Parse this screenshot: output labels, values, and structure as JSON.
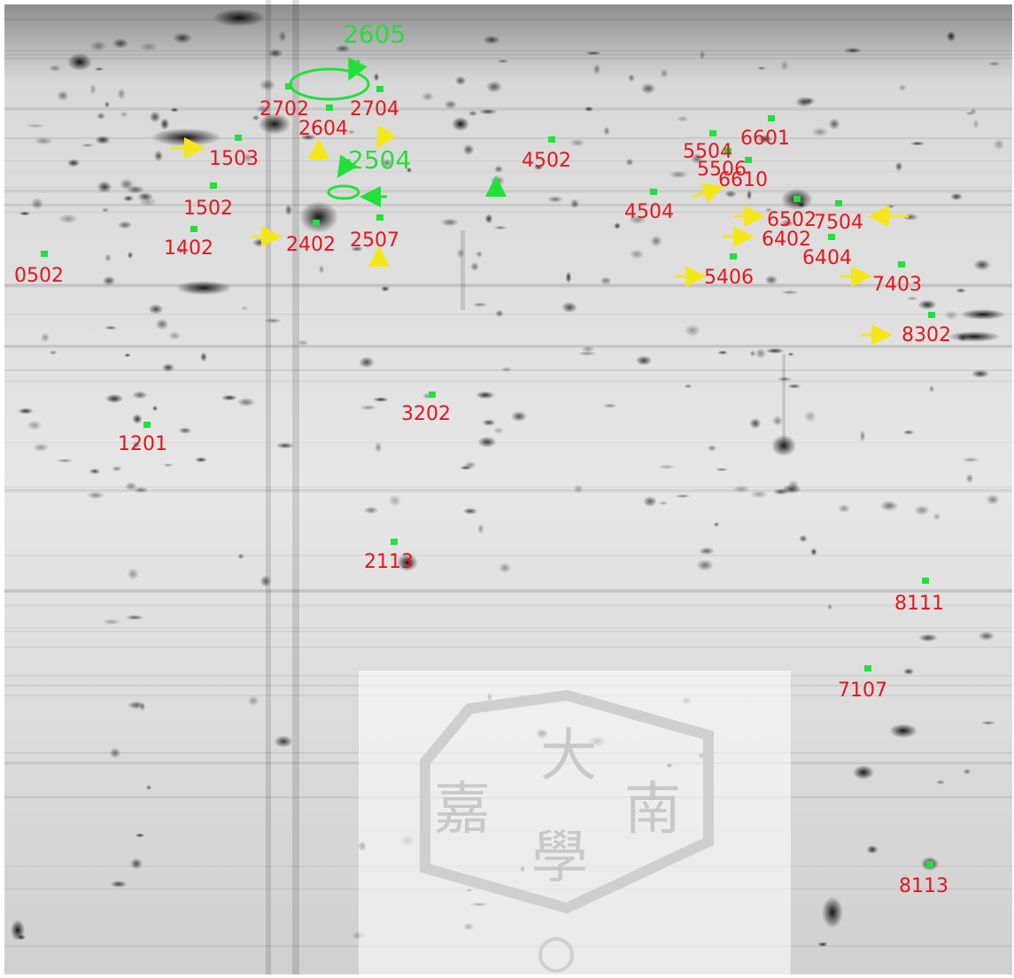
{
  "green_labels": [
    "2605",
    "2504"
  ],
  "red_labels": [
    "2702",
    "2604",
    "2704",
    "1503",
    "4502",
    "5504",
    "6601",
    "5506",
    "6610",
    "4504",
    "1502",
    "2402",
    "2507",
    "1402",
    "0502",
    "6502",
    "7504",
    "6402",
    "6404",
    "5406",
    "7403",
    "8302",
    "3202",
    "1201",
    "2113",
    "8111",
    "7107",
    "8113"
  ],
  "watermark": [
    "大",
    "嘉",
    "南",
    "學"
  ]
}
